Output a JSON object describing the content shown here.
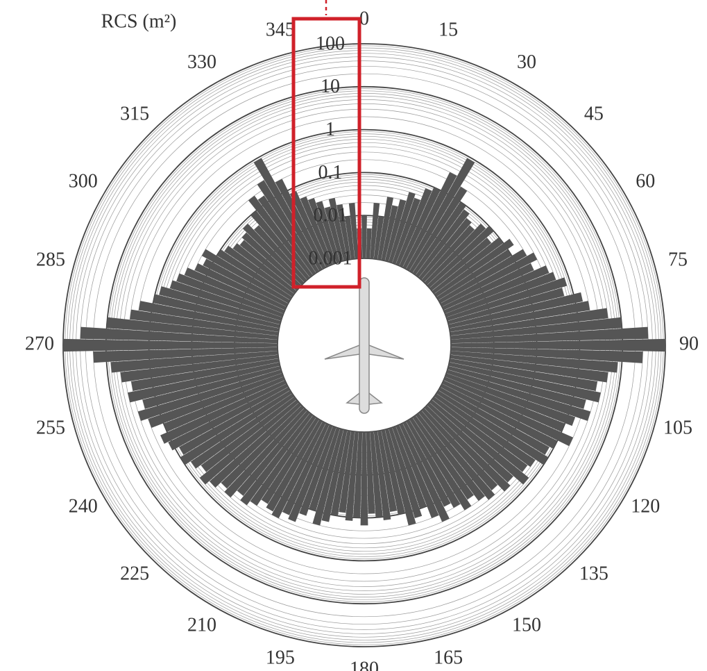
{
  "chart_data": {
    "type": "polar-bar",
    "y_label": "RCS (m²)",
    "y_scale": "log",
    "color": "#555555",
    "ylim": [
      0.001,
      100
    ],
    "yticks": [
      0.001,
      0.01,
      0.1,
      1,
      10,
      100
    ],
    "xlim": [
      0,
      360
    ],
    "xticks": [
      0,
      15,
      30,
      45,
      60,
      75,
      90,
      105,
      120,
      135,
      150,
      165,
      180,
      195,
      210,
      225,
      240,
      255,
      270,
      285,
      300,
      315,
      330,
      345
    ],
    "x": [
      0,
      2.5,
      5,
      7.5,
      10,
      12.5,
      15,
      17.5,
      20,
      22.5,
      25,
      27.5,
      30,
      32.5,
      35,
      37.5,
      40,
      42.5,
      45,
      47.5,
      50,
      52.5,
      55,
      57.5,
      60,
      62.5,
      65,
      67.5,
      70,
      72.5,
      75,
      77.5,
      80,
      82.5,
      85,
      87.5,
      90,
      92.5,
      95,
      97.5,
      100,
      102.5,
      105,
      107.5,
      110,
      112.5,
      115,
      117.5,
      120,
      122.5,
      125,
      127.5,
      130,
      132.5,
      135,
      137.5,
      140,
      142.5,
      145,
      147.5,
      150,
      152.5,
      155,
      157.5,
      160,
      162.5,
      165,
      167.5,
      170,
      172.5,
      175,
      177.5,
      180,
      182.5,
      185,
      187.5,
      190,
      192.5,
      195,
      197.5,
      200,
      202.5,
      205,
      207.5,
      210,
      212.5,
      215,
      217.5,
      220,
      222.5,
      225,
      227.5,
      230,
      232.5,
      235,
      237.5,
      240,
      242.5,
      245,
      247.5,
      250,
      252.5,
      255,
      257.5,
      260,
      262.5,
      265,
      267.5,
      270,
      272.5,
      275,
      277.5,
      280,
      282.5,
      285,
      287.5,
      290,
      292.5,
      295,
      297.5,
      300,
      302.5,
      305,
      307.5,
      310,
      312.5,
      315,
      317.5,
      320,
      322.5,
      325,
      327.5,
      330,
      332.5,
      335,
      337.5,
      340,
      342.5,
      345,
      347.5,
      350,
      352.5,
      355,
      357.5
    ],
    "values": [
      0.01,
      0.005,
      0.02,
      0.01,
      0.03,
      0.02,
      0.03,
      0.05,
      0.04,
      0.08,
      0.1,
      0.3,
      0.9,
      0.2,
      0.1,
      0.08,
      0.06,
      0.05,
      0.08,
      0.1,
      0.06,
      0.1,
      0.15,
      0.1,
      0.2,
      0.3,
      0.2,
      0.4,
      0.5,
      0.8,
      0.6,
      1.5,
      2,
      5,
      10,
      40,
      100,
      30,
      8,
      5,
      3,
      4,
      2,
      3,
      1.5,
      1,
      2,
      1,
      0.8,
      1,
      0.6,
      0.5,
      0.8,
      0.4,
      0.5,
      0.3,
      0.4,
      0.3,
      0.2,
      0.3,
      0.2,
      0.15,
      0.3,
      0.2,
      0.1,
      0.15,
      0.2,
      0.1,
      0.08,
      0.12,
      0.1,
      0.08,
      0.15,
      0.1,
      0.12,
      0.08,
      0.1,
      0.15,
      0.2,
      0.1,
      0.15,
      0.25,
      0.2,
      0.3,
      0.25,
      0.2,
      0.3,
      0.4,
      0.3,
      0.5,
      0.4,
      0.6,
      0.8,
      0.5,
      0.7,
      1,
      0.8,
      1.2,
      1.5,
      1,
      2,
      3,
      2,
      4,
      3,
      5,
      8,
      20,
      100,
      40,
      10,
      3,
      2,
      1,
      0.8,
      0.5,
      0.4,
      0.3,
      0.2,
      0.15,
      0.2,
      0.1,
      0.08,
      0.06,
      0.05,
      0.06,
      0.08,
      0.05,
      0.1,
      0.2,
      0.15,
      0.3,
      0.9,
      0.2,
      0.08,
      0.05,
      0.04,
      0.03,
      0.02,
      0.03,
      0.02,
      0.01,
      0.02,
      0.005
    ]
  }
}
